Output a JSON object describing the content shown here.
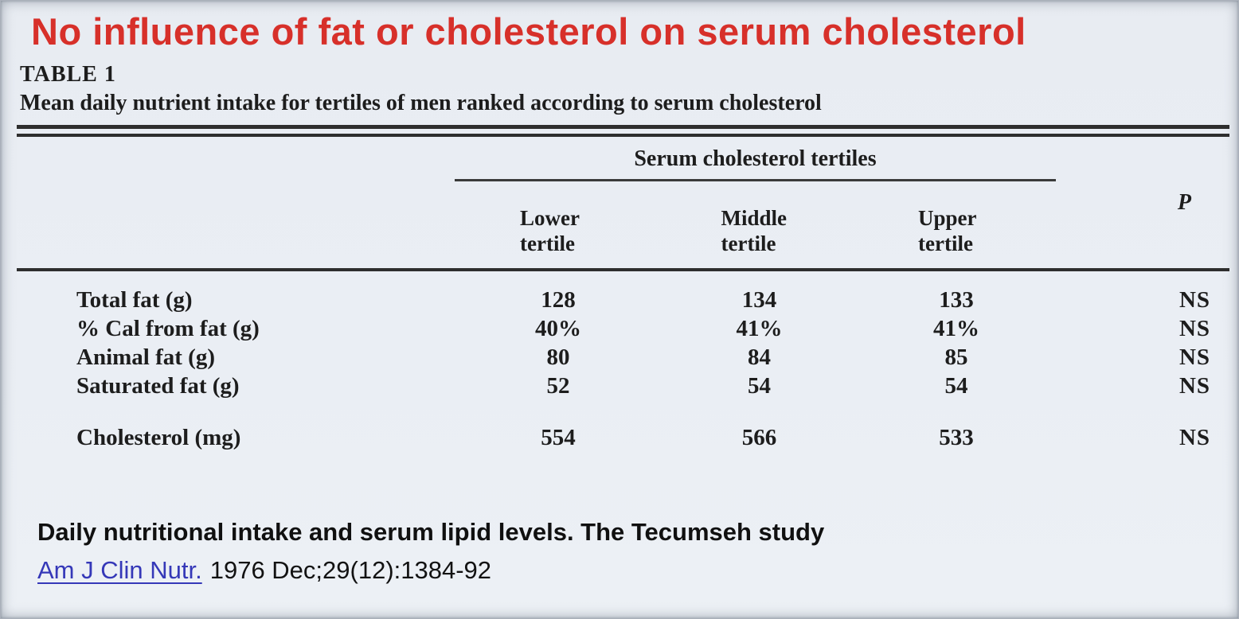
{
  "slide": {
    "title": "No influence of fat or cholesterol on serum cholesterol"
  },
  "table": {
    "label": "TABLE 1",
    "caption": "Mean daily nutrient intake for tertiles of men ranked according to serum cholesterol",
    "group_header": "Serum cholesterol tertiles",
    "col_headers": {
      "lower": "Lower tertile",
      "middle": "Middle tertile",
      "upper": "Upper tertile",
      "p": "P"
    },
    "rows": [
      {
        "label": "Total fat (g)",
        "lower": "128",
        "middle": "134",
        "upper": "133",
        "p": "NS"
      },
      {
        "label": "% Cal from fat (g)",
        "lower": "40%",
        "middle": "41%",
        "upper": "41%",
        "p": "NS"
      },
      {
        "label": "Animal fat (g)",
        "lower": "80",
        "middle": "84",
        "upper": "85",
        "p": "NS"
      },
      {
        "label": "Saturated fat (g)",
        "lower": "52",
        "middle": "54",
        "upper": "54",
        "p": "NS"
      },
      {
        "label": "Cholesterol (mg)",
        "lower": "554",
        "middle": "566",
        "upper": "533",
        "p": "NS"
      }
    ]
  },
  "citation": {
    "study_title": "Daily nutritional intake and serum lipid levels. The Tecumseh study",
    "journal_link": "Am J Clin Nutr.",
    "reference": "1976 Dec;29(12):1384-92"
  },
  "colors": {
    "headline_red": "#d7302a",
    "link_blue": "#3538b8",
    "background": "#eaeef4",
    "table_ink": "#1d1d1d"
  }
}
